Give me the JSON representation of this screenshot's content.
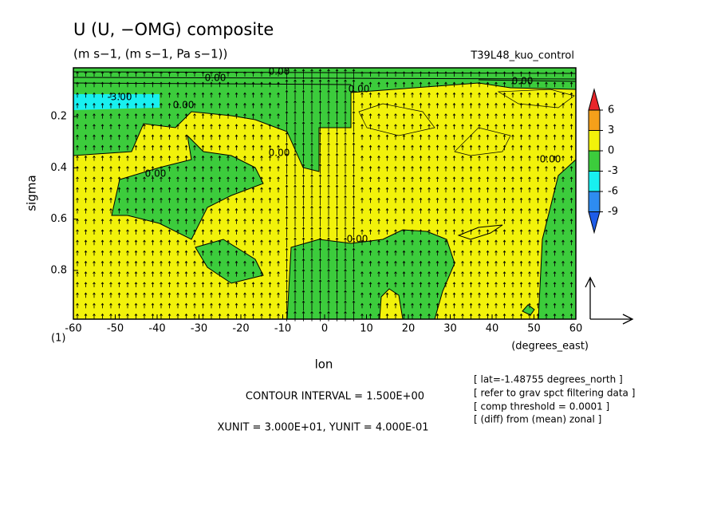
{
  "chart_data": {
    "type": "contour",
    "title": "U (U, −OMG) composite",
    "subtitle": "(m s−1, (m s−1, Pa s−1))",
    "run_label": "T39L48_kuo_control",
    "x_label": "lon",
    "x_unit": "(degrees_east)",
    "y_label": "sigma",
    "corner_label": "(1)",
    "xlim": [
      -60,
      60
    ],
    "xticks": [
      -60,
      -50,
      -40,
      -30,
      -20,
      -10,
      0,
      10,
      20,
      30,
      40,
      50,
      60
    ],
    "ylim": [
      0.99,
      0.01
    ],
    "yticks": [
      0.2,
      0.4,
      0.6,
      0.8
    ],
    "colorbar": {
      "levels": [
        6,
        3,
        0,
        -3,
        -6,
        -9
      ],
      "colors": [
        "#e8262b",
        "#f5a01a",
        "#f2f20a",
        "#3ccc3c",
        "#18f0f0",
        "#2e8cf0",
        "#1e5ce8"
      ]
    },
    "contour_labels": [
      "0.00",
      "0.00",
      "0.00",
      "0.00",
      "-3.00",
      "0.00",
      "0.00",
      "0.00",
      "0.00",
      "0.00"
    ],
    "notes": [
      "CONTOUR INTERVAL = 1.500E+00",
      "XUNIT = 3.000E+01, YUNIT = 4.000E-01"
    ],
    "info": [
      "[ lat=-1.48755 degrees_north ]",
      "[ refer to grav spct filtering data ]",
      "[ comp threshold = 0.0001 ]",
      "[ (diff) from (mean) zonal ]"
    ]
  }
}
